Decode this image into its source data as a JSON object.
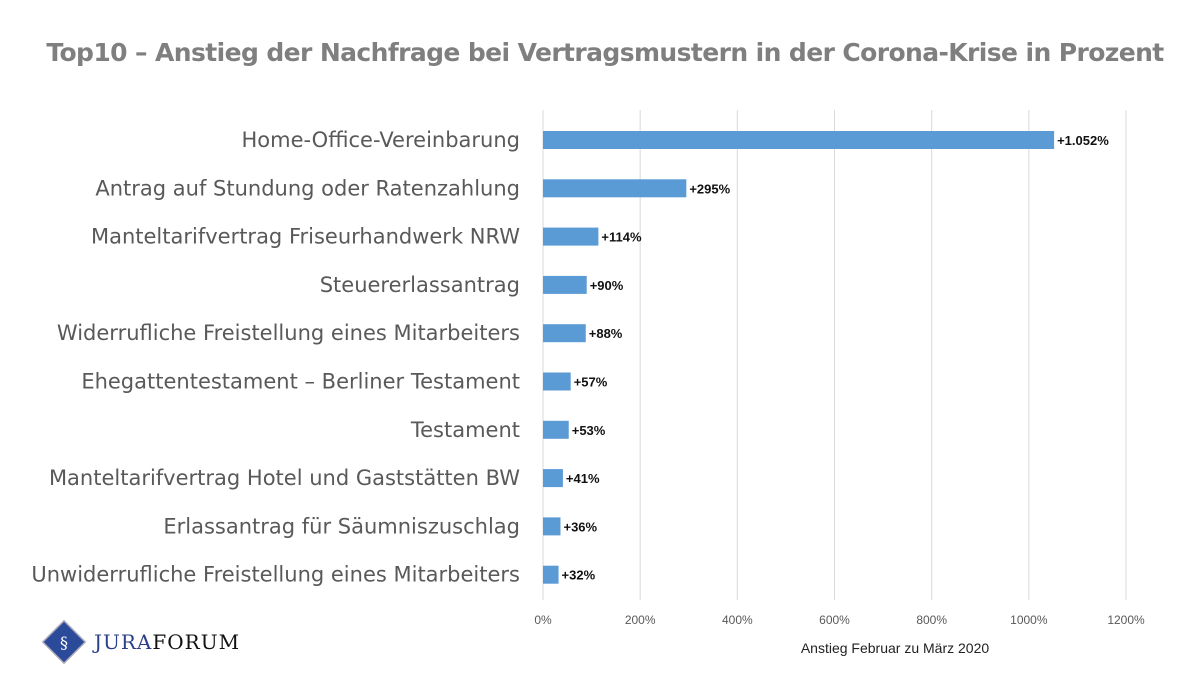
{
  "chart_data": {
    "type": "bar",
    "orientation": "horizontal",
    "title": "Top10 – Anstieg der Nachfrage bei Vertragsmustern in der Corona-Krise in Prozent",
    "xlabel": "Anstieg Februar zu März 2020",
    "ylabel": "",
    "categories": [
      "Home-Office-Vereinbarung",
      "Antrag auf Stundung oder Ratenzahlung",
      "Manteltarifvertrag Friseurhandwerk NRW",
      "Steuererlassantrag",
      "Widerrufliche Freistellung eines Mitarbeiters",
      "Ehegattentestament – Berliner Testament",
      "Testament",
      "Manteltarifvertrag Hotel und Gaststätten BW",
      "Erlassantrag für Säumniszuschlag",
      "Unwiderrufliche Freistellung eines Mitarbeiters"
    ],
    "values": [
      1052,
      295,
      114,
      90,
      88,
      57,
      53,
      41,
      36,
      32
    ],
    "data_labels": [
      "+1.052%",
      "+295%",
      "+114%",
      "+90%",
      "+88%",
      "+57%",
      "+53%",
      "+41%",
      "+36%",
      "+32%"
    ],
    "xlim": [
      0,
      1200
    ],
    "xticks": [
      0,
      200,
      400,
      600,
      800,
      1000,
      1200
    ],
    "xtick_labels": [
      "0%",
      "200%",
      "400%",
      "600%",
      "800%",
      "1000%",
      "1200%"
    ],
    "grid": "vertical",
    "legend": "none",
    "bar_color": "#5b9bd5"
  },
  "logo": {
    "part1": "JURA",
    "part2": "FORUM",
    "text": "JuraForum"
  }
}
